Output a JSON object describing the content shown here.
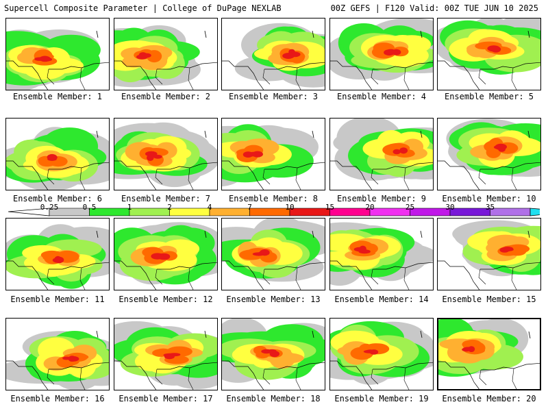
{
  "header": {
    "left": "Supercell Composite Parameter | College of DuPage NEXLAB",
    "right": "00Z GEFS | F120 Valid: 00Z TUE JUN 10 2025"
  },
  "colorbar": {
    "ticks": [
      "0.25",
      "0.5",
      "1",
      "2",
      "4",
      "7",
      "10",
      "15",
      "20",
      "25",
      "30",
      "35"
    ],
    "colors": [
      "#ffffff",
      "#c8c8c8",
      "#2ee82e",
      "#a0f050",
      "#ffff40",
      "#ffb030",
      "#ff6a00",
      "#e81818",
      "#ff0090",
      "#f030f0",
      "#c018e8",
      "#7818d8",
      "#b070e8",
      "#20e0f0"
    ]
  },
  "members": [
    {
      "caption": "Ensemble Member: 1",
      "selected": false
    },
    {
      "caption": "Ensemble Member: 2",
      "selected": false
    },
    {
      "caption": "Ensemble Member: 3",
      "selected": false
    },
    {
      "caption": "Ensemble Member: 4",
      "selected": false
    },
    {
      "caption": "Ensemble Member: 5",
      "selected": false
    },
    {
      "caption": "Ensemble Member: 6",
      "selected": false
    },
    {
      "caption": "Ensemble Member: 7",
      "selected": false
    },
    {
      "caption": "Ensemble Member: 8",
      "selected": false
    },
    {
      "caption": "Ensemble Member: 9",
      "selected": false
    },
    {
      "caption": "Ensemble Member: 10",
      "selected": false
    },
    {
      "caption": "Ensemble Member: 11",
      "selected": false
    },
    {
      "caption": "Ensemble Member: 12",
      "selected": false
    },
    {
      "caption": "Ensemble Member: 13",
      "selected": false
    },
    {
      "caption": "Ensemble Member: 14",
      "selected": false
    },
    {
      "caption": "Ensemble Member: 15",
      "selected": false
    },
    {
      "caption": "Ensemble Member: 16",
      "selected": false
    },
    {
      "caption": "Ensemble Member: 17",
      "selected": false
    },
    {
      "caption": "Ensemble Member: 18",
      "selected": false
    },
    {
      "caption": "Ensemble Member: 19",
      "selected": false
    },
    {
      "caption": "Ensemble Member: 20",
      "selected": true
    }
  ]
}
